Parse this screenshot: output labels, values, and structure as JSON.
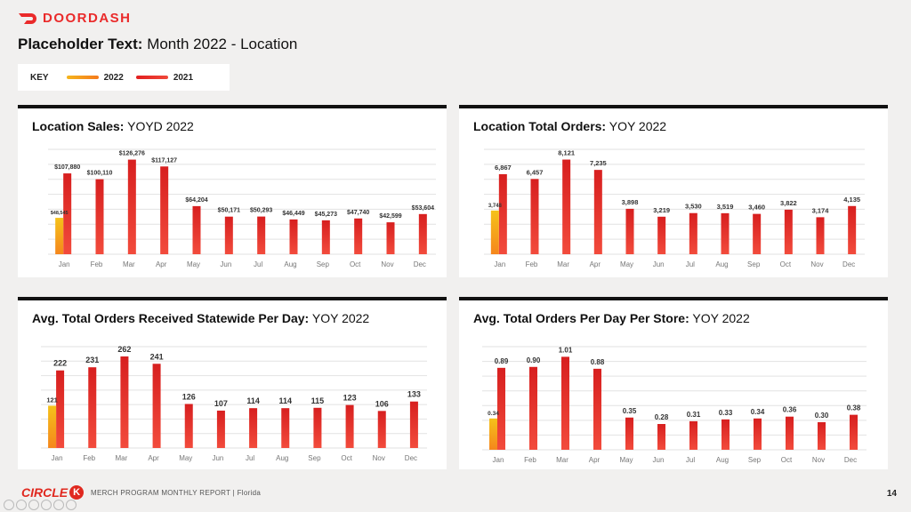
{
  "brand": {
    "name": "DOORDASH",
    "color": "#ea2a2a"
  },
  "header": {
    "title_bold": "Placeholder Text:",
    "title_rest": "Month 2022 - Location"
  },
  "key": {
    "label": "KEY",
    "items": [
      {
        "label": "2022",
        "color": "#f5a81c"
      },
      {
        "label": "2021",
        "color": "#e52d22"
      }
    ]
  },
  "colors": {
    "y2022_top": "#f5c21a",
    "y2022_bottom": "#f5861c",
    "y2021_top": "#d71f1f",
    "y2021_bottom": "#f24b3c",
    "grid": "#e2e2e2"
  },
  "footer": {
    "brand": "CIRCLE",
    "brand_mark": "K",
    "report": "MERCH PROGRAM MONTHLY REPORT | Florida",
    "page": "14"
  },
  "chart_data": [
    {
      "type": "bar",
      "title_bold": "Location Sales:",
      "title_rest": "YOYD 2022",
      "categories": [
        "Jan",
        "Feb",
        "Mar",
        "Apr",
        "May",
        "Jun",
        "Jul",
        "Aug",
        "Sep",
        "Oct",
        "Nov",
        "Dec"
      ],
      "series": [
        {
          "name": "2022",
          "values": [
            48545,
            null,
            null,
            null,
            null,
            null,
            null,
            null,
            null,
            null,
            null,
            null
          ],
          "labels": [
            "$48,545",
            "",
            "",
            "",
            "",
            "",
            "",
            "",
            "",
            "",
            "",
            ""
          ]
        },
        {
          "name": "2021",
          "values": [
            107880,
            100110,
            126276,
            117127,
            64204,
            50171,
            50293,
            46449,
            45273,
            47740,
            42599,
            53604
          ],
          "labels": [
            "$107,880",
            "$100,110",
            "$126,276",
            "$117,127",
            "$64,204",
            "$50,171",
            "$50,293",
            "$46,449",
            "$45,273",
            "$47,740",
            "$42,599",
            "$53,604"
          ]
        }
      ],
      "ylim": [
        0,
        140000
      ]
    },
    {
      "type": "bar",
      "title_bold": "Location Total Orders:",
      "title_rest": "YOY 2022",
      "categories": [
        "Jan",
        "Feb",
        "Mar",
        "Apr",
        "May",
        "Jun",
        "Jul",
        "Aug",
        "Sep",
        "Oct",
        "Nov",
        "Dec"
      ],
      "series": [
        {
          "name": "2022",
          "values": [
            3748,
            null,
            null,
            null,
            null,
            null,
            null,
            null,
            null,
            null,
            null,
            null
          ],
          "labels": [
            "3,748",
            "",
            "",
            "",
            "",
            "",
            "",
            "",
            "",
            "",
            "",
            ""
          ]
        },
        {
          "name": "2021",
          "values": [
            6867,
            6457,
            8121,
            7235,
            3898,
            3219,
            3530,
            3519,
            3460,
            3822,
            3174,
            4135
          ],
          "labels": [
            "6,867",
            "6,457",
            "8,121",
            "7,235",
            "3,898",
            "3,219",
            "3,530",
            "3,519",
            "3,460",
            "3,822",
            "3,174",
            "4,135"
          ]
        }
      ],
      "ylim": [
        0,
        9000
      ]
    },
    {
      "type": "bar",
      "title_bold": "Avg. Total Orders Received Statewide Per Day:",
      "title_rest": "YOY 2022",
      "categories": [
        "Jan",
        "Feb",
        "Mar",
        "Apr",
        "May",
        "Jun",
        "Jul",
        "Aug",
        "Sep",
        "Oct",
        "Nov",
        "Dec"
      ],
      "series": [
        {
          "name": "2022",
          "values": [
            121,
            null,
            null,
            null,
            null,
            null,
            null,
            null,
            null,
            null,
            null,
            null
          ],
          "labels": [
            "121",
            "",
            "",
            "",
            "",
            "",
            "",
            "",
            "",
            "",
            "",
            ""
          ]
        },
        {
          "name": "2021",
          "values": [
            222,
            231,
            262,
            241,
            126,
            107,
            114,
            114,
            115,
            123,
            106,
            133
          ],
          "labels": [
            "222",
            "231",
            "262",
            "241",
            "126",
            "107",
            "114",
            "114",
            "115",
            "123",
            "106",
            "133"
          ]
        }
      ],
      "ylim": [
        0,
        290
      ]
    },
    {
      "type": "bar",
      "title_bold": "Avg. Total Orders Per Day Per Store:",
      "title_rest": "YOY 2022",
      "categories": [
        "Jan",
        "Feb",
        "Mar",
        "Apr",
        "May",
        "Jun",
        "Jul",
        "Aug",
        "Sep",
        "Oct",
        "Nov",
        "Dec"
      ],
      "series": [
        {
          "name": "2022",
          "values": [
            0.34,
            null,
            null,
            null,
            null,
            null,
            null,
            null,
            null,
            null,
            null,
            null
          ],
          "labels": [
            "0.34",
            "",
            "",
            "",
            "",
            "",
            "",
            "",
            "",
            "",
            "",
            ""
          ]
        },
        {
          "name": "2021",
          "values": [
            0.89,
            0.9,
            1.01,
            0.88,
            0.35,
            0.28,
            0.31,
            0.33,
            0.34,
            0.36,
            0.3,
            0.38
          ],
          "labels": [
            "0.89",
            "0.90",
            "1.01",
            "0.88",
            "0.35",
            "0.28",
            "0.31",
            "0.33",
            "0.34",
            "0.36",
            "0.30",
            "0.38"
          ]
        }
      ],
      "ylim": [
        0,
        1.12
      ]
    }
  ]
}
